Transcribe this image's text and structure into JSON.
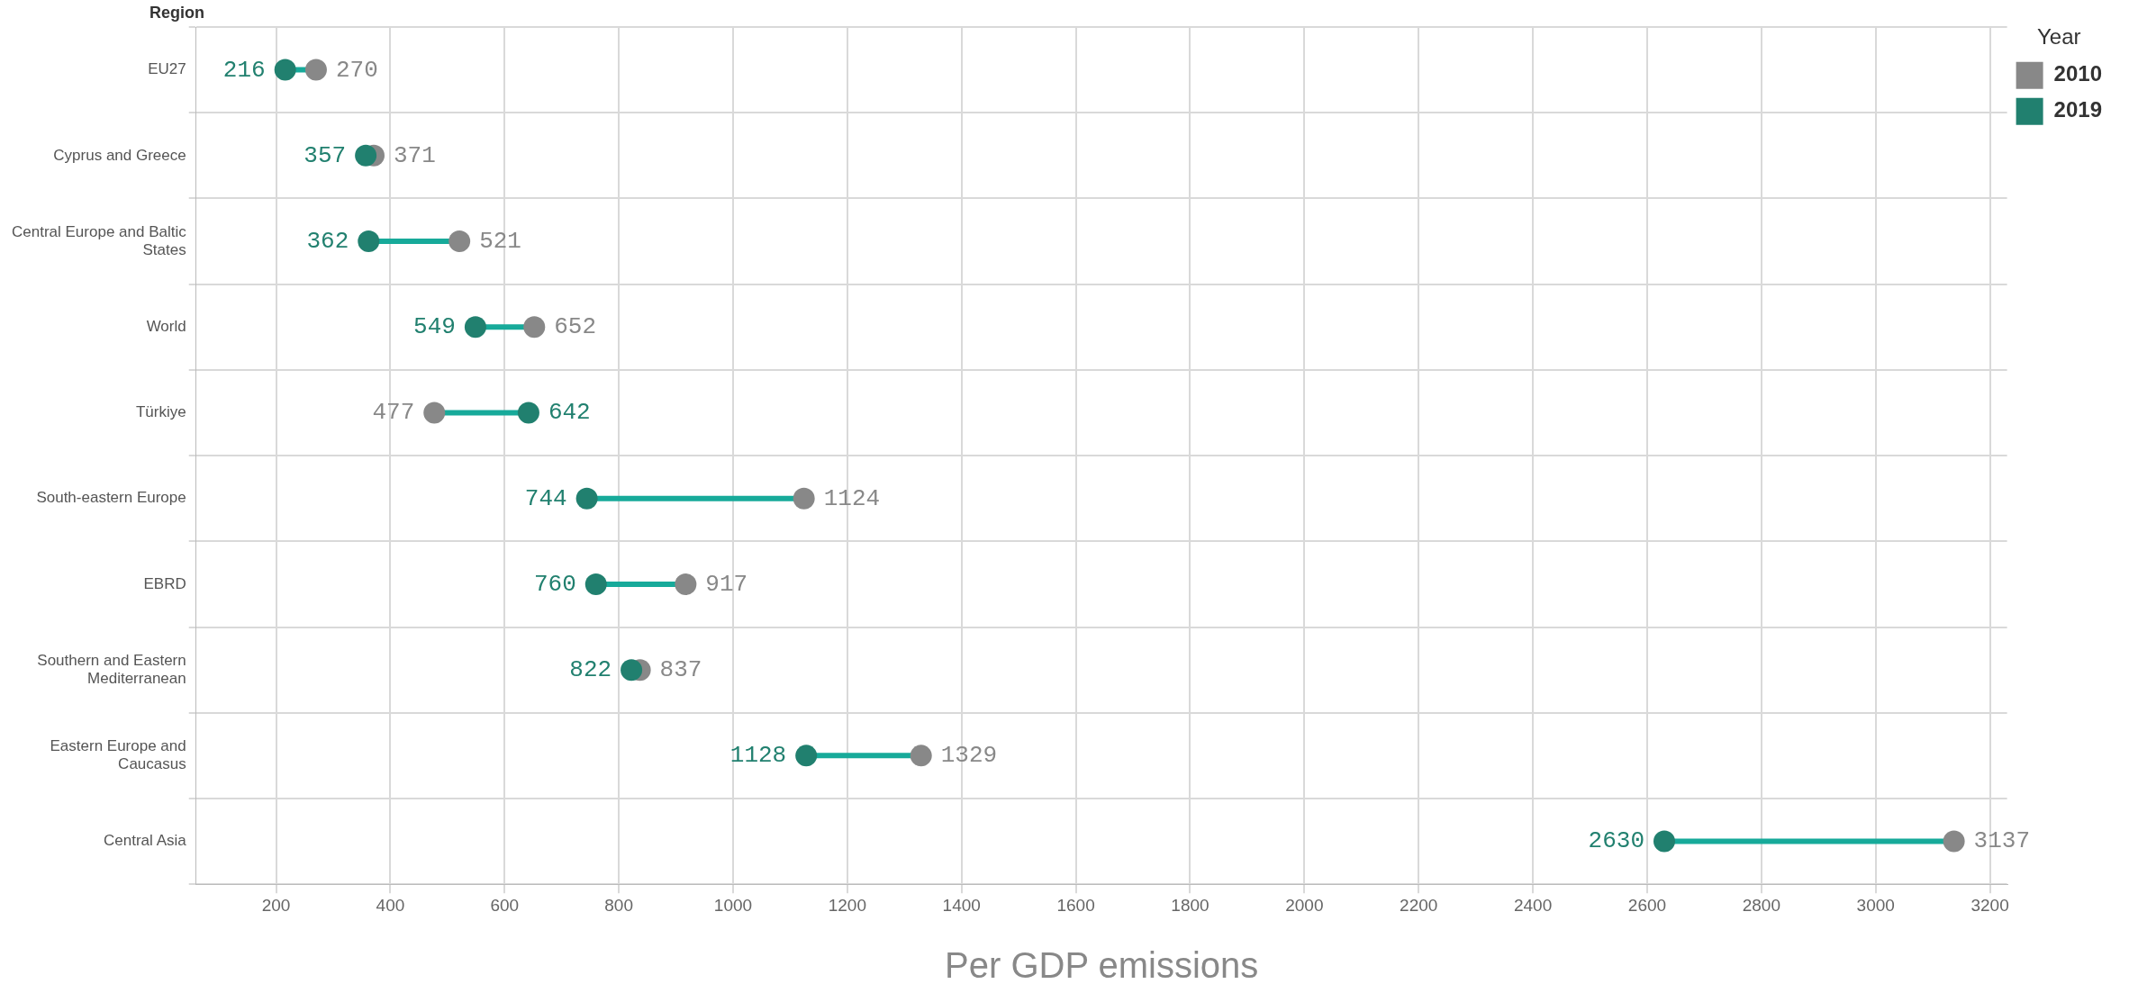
{
  "chart_data": {
    "type": "scatter",
    "orientation": "horizontal",
    "ylabel": "Region",
    "xlabel": "Per GDP emissions",
    "legend_title": "Year",
    "legend": "top right",
    "categories": [
      "EU27",
      "Cyprus and Greece",
      "Central Europe and Baltic States",
      "World",
      "Türkiye",
      "South-eastern Europe",
      "EBRD",
      "Southern and Eastern Mediterranean",
      "Eastern Europe and Caucasus",
      "Central Asia"
    ],
    "series": [
      {
        "name": "2010",
        "color": "#888888",
        "values": [
          270,
          371,
          521,
          652,
          477,
          1124,
          917,
          837,
          1329,
          3137
        ]
      },
      {
        "name": "2019",
        "color": "#21806f",
        "values": [
          216,
          357,
          362,
          549,
          642,
          744,
          760,
          822,
          1128,
          2630
        ]
      }
    ],
    "xlim": [
      60,
      3230
    ],
    "xticks": [
      200,
      400,
      600,
      800,
      1000,
      1200,
      1400,
      1600,
      1800,
      2000,
      2200,
      2400,
      2600,
      2800,
      3000,
      3200
    ],
    "grid": true,
    "marker": "circle",
    "data_labels": true
  }
}
